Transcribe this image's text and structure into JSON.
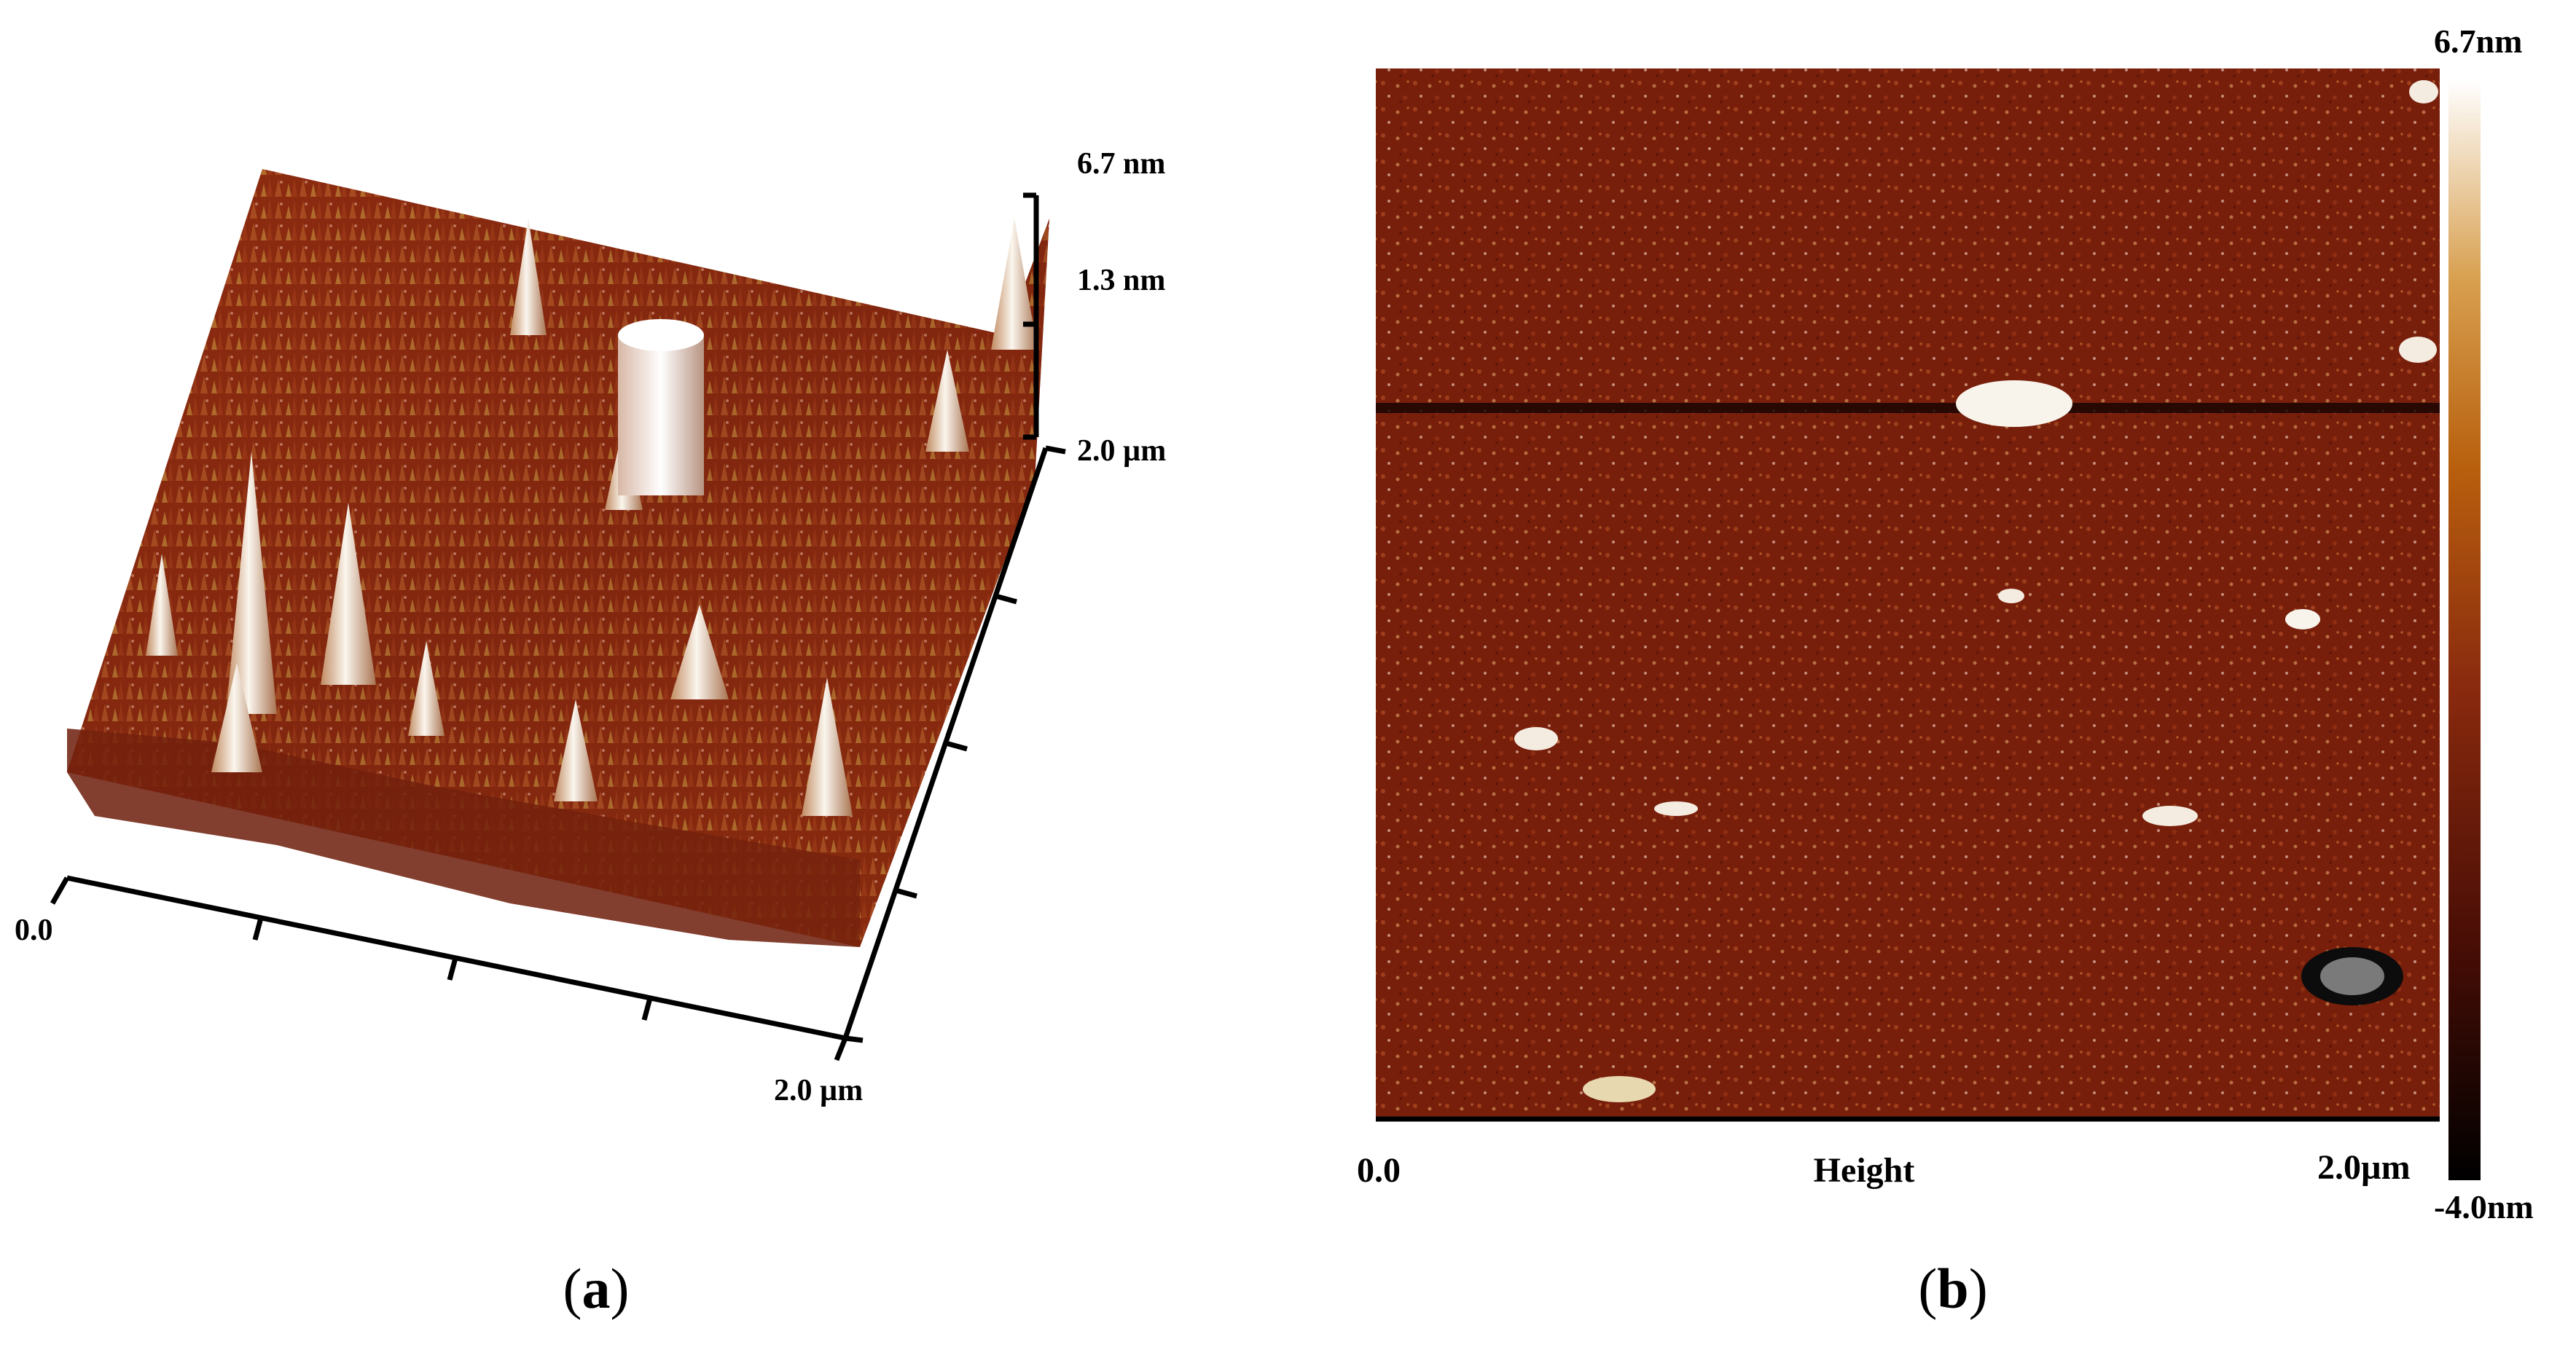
{
  "panel_a": {
    "caption_open": "(",
    "caption_letter": "a",
    "caption_close": ")",
    "z_max_label": "6.7 nm",
    "z_mid_label": "1.3 nm",
    "y_end_label": "2.0 µm",
    "x_origin_label": "0.0",
    "x_end_label": "2.0 µm"
  },
  "panel_b": {
    "caption_open": "(",
    "caption_letter": "b",
    "caption_close": ")",
    "scale_max_label": "6.7nm",
    "scale_min_label": "-4.0nm",
    "x_origin_label": "0.0",
    "x_center_label": "Height",
    "x_end_label": "2.0µm"
  },
  "colors": {
    "surface_base": "#7a1e0c",
    "surface_mid": "#a0401a",
    "surface_highlight": "#d6a040",
    "peak_white": "#f2ece0",
    "colorbar_stops": [
      "#000000",
      "#4a0e06",
      "#8a2a0e",
      "#b8600e",
      "#d8a050",
      "#ffffff"
    ]
  }
}
